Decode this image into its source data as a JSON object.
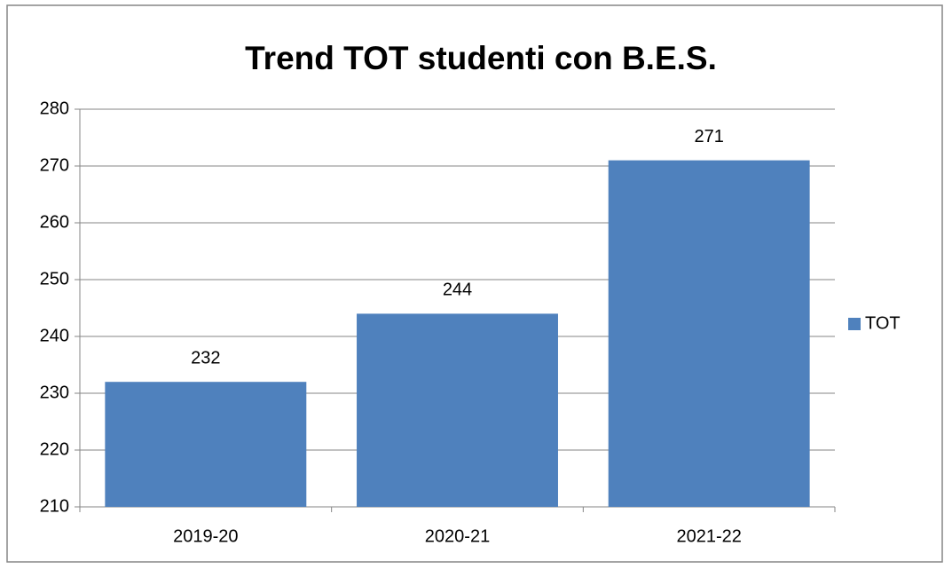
{
  "chart_data": {
    "type": "bar",
    "title": "Trend TOT studenti con B.E.S.",
    "categories": [
      "2019-20",
      "2020-21",
      "2021-22"
    ],
    "series": [
      {
        "name": "TOT",
        "color": "#4f81bd",
        "values": [
          232,
          244,
          271
        ]
      }
    ],
    "ylim": [
      210,
      280
    ],
    "yticks": [
      210,
      220,
      230,
      240,
      250,
      260,
      270,
      280
    ],
    "grid": true,
    "legend": "right",
    "data_labels": true
  }
}
